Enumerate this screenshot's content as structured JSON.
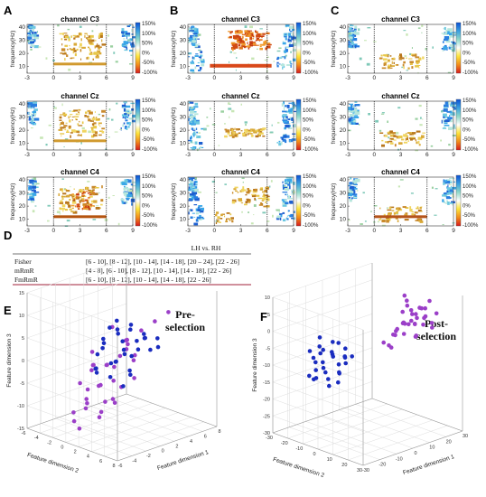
{
  "figure": {
    "letters": [
      "A",
      "B",
      "C",
      "D",
      "E",
      "F"
    ],
    "colorbar": {
      "labels": [
        "150%",
        "100%",
        "50%",
        "0%",
        "-50%",
        "-100%"
      ],
      "colors": [
        "#d7191c",
        "#f28c1a",
        "#fde33b",
        "#ffffff",
        "#8fd8c8",
        "#3aa0e0",
        "#0a4fd4"
      ]
    }
  },
  "chart_data": [
    {
      "type": "heatmap",
      "panel": "A",
      "charts": [
        {
          "title": "channel C3",
          "ylabel": "frequency(Hz)",
          "xticks": [
            "-3",
            "0",
            "3",
            "6",
            "9"
          ],
          "yticks": [
            "10",
            "20",
            "30",
            "40"
          ]
        },
        {
          "title": "channel Cz",
          "ylabel": "frequency(Hz)",
          "xticks": [
            "-3",
            "0",
            "3",
            "6",
            "9"
          ],
          "yticks": [
            "10",
            "20",
            "30",
            "40"
          ]
        },
        {
          "title": "channel C4",
          "ylabel": "frequency(Hz)",
          "xticks": [
            "-3",
            "0",
            "3",
            "6",
            "9"
          ],
          "yticks": [
            "10",
            "20",
            "30",
            "40"
          ]
        }
      ]
    },
    {
      "type": "heatmap",
      "panel": "B",
      "charts": [
        {
          "title": "channel C3",
          "ylabel": "frequency(Hz)",
          "xticks": [
            "-3",
            "0",
            "3",
            "6",
            "9"
          ],
          "yticks": [
            "10",
            "20",
            "30",
            "40"
          ]
        },
        {
          "title": "channel Cz",
          "ylabel": "frequency(Hz)",
          "xticks": [
            "-3",
            "0",
            "3",
            "6",
            "9"
          ],
          "yticks": [
            "10",
            "20",
            "30",
            "40"
          ]
        },
        {
          "title": "channel C4",
          "ylabel": "frequency(Hz)",
          "xticks": [
            "-3",
            "0",
            "3",
            "6",
            "9"
          ],
          "yticks": [
            "10",
            "20",
            "30",
            "40"
          ]
        }
      ]
    },
    {
      "type": "heatmap",
      "panel": "C",
      "charts": [
        {
          "title": "channel C3",
          "ylabel": "frequency(Hz)",
          "xticks": [
            "-3",
            "0",
            "3",
            "6",
            "9"
          ],
          "yticks": [
            "10",
            "20",
            "30",
            "40"
          ]
        },
        {
          "title": "channel Cz",
          "ylabel": "frequency(Hz)",
          "xticks": [
            "-3",
            "0",
            "3",
            "6",
            "9"
          ],
          "yticks": [
            "10",
            "20",
            "30",
            "40"
          ]
        },
        {
          "title": "channel C4",
          "ylabel": "frequency(Hz)",
          "xticks": [
            "-3",
            "0",
            "3",
            "6",
            "9"
          ],
          "yticks": [
            "10",
            "20",
            "30",
            "40"
          ]
        }
      ]
    },
    {
      "type": "table",
      "panel": "D",
      "header": "LH vs. RH",
      "rows": [
        {
          "method": "Fisher",
          "bands": "[6 - 10], [8 - 12], [10 - 14], [14 - 18], [20 – 24], [22 - 26]"
        },
        {
          "method": "mRmR",
          "bands": "[4 - 8], [6 - 10], [8 - 12], [10 - 14], [14 - 18], [22 - 26]"
        },
        {
          "method": "FmRmR",
          "bands": "[6 - 10], [8 - 12], [10 - 14], [14 - 18], [22 - 26]"
        }
      ]
    },
    {
      "type": "scatter",
      "panel": "E",
      "title_lines": [
        "Pre-",
        "selection"
      ],
      "xlabel": "Feature dimension 1",
      "ylabel": "Feature dimension 2",
      "zlabel": "Feature dimension 3",
      "xticks": [
        "-6",
        "-4",
        "-2",
        "0",
        "2",
        "4",
        "6",
        "8"
      ],
      "yticks": [
        "-6",
        "-4",
        "-2",
        "0",
        "2",
        "4",
        "6",
        "8"
      ],
      "zticks": [
        "-15",
        "-10",
        "-5",
        "0",
        "5",
        "10",
        "15"
      ],
      "xlim": [
        -6,
        8
      ],
      "ylim": [
        -6,
        8
      ],
      "zlim": [
        -15,
        15
      ],
      "series": [
        {
          "color": "#9b3fc8",
          "points": [
            [
              -4,
              5,
              12
            ],
            [
              -3,
              6,
              9
            ],
            [
              -5,
              3,
              6
            ],
            [
              -2,
              4,
              4
            ],
            [
              -4,
              2,
              2
            ],
            [
              -3,
              1,
              1
            ],
            [
              -5,
              4,
              -1
            ],
            [
              -2,
              3,
              -2
            ],
            [
              -4,
              0,
              -3
            ],
            [
              -1,
              5,
              3
            ],
            [
              -3,
              4,
              -5
            ],
            [
              -5,
              2,
              -7
            ],
            [
              -2,
              1,
              -4
            ],
            [
              -3,
              0,
              -8
            ],
            [
              -4,
              -1,
              -10
            ],
            [
              -1,
              2,
              0
            ],
            [
              0,
              3,
              5
            ],
            [
              -2,
              -1,
              -6
            ],
            [
              1,
              4,
              8
            ],
            [
              -5,
              1,
              -12
            ],
            [
              -3,
              3,
              2
            ],
            [
              0,
              4,
              -2
            ],
            [
              -4,
              3,
              -9
            ],
            [
              -1,
              0,
              -11
            ],
            [
              2,
              5,
              10
            ],
            [
              -2,
              5,
              6
            ],
            [
              -6,
              4,
              3
            ],
            [
              0,
              2,
              -5
            ],
            [
              -3,
              -2,
              -13
            ],
            [
              1,
              3,
              2
            ],
            [
              -1,
              4,
              7
            ],
            [
              -5,
              5,
              -4
            ],
            [
              -2,
              2,
              1
            ],
            [
              -4,
              1,
              -6
            ],
            [
              0,
              1,
              -9
            ],
            [
              3,
              6,
              12
            ]
          ]
        },
        {
          "color": "#1a2cbf",
          "points": [
            [
              3,
              -2,
              6
            ],
            [
              4,
              -1,
              4
            ],
            [
              2,
              -3,
              2
            ],
            [
              5,
              0,
              3
            ],
            [
              3,
              -4,
              0
            ],
            [
              4,
              -2,
              -1
            ],
            [
              6,
              -1,
              1
            ],
            [
              2,
              -1,
              -2
            ],
            [
              5,
              -3,
              -3
            ],
            [
              1,
              -2,
              1
            ],
            [
              3,
              0,
              -4
            ],
            [
              4,
              -4,
              -5
            ],
            [
              6,
              -2,
              -2
            ],
            [
              2,
              -4,
              -6
            ],
            [
              5,
              1,
              0
            ],
            [
              3,
              -3,
              -7
            ],
            [
              1,
              0,
              -1
            ],
            [
              4,
              0,
              2
            ],
            [
              6,
              -3,
              -4
            ],
            [
              2,
              -2,
              5
            ],
            [
              7,
              0,
              -1
            ],
            [
              3,
              -5,
              -3
            ],
            [
              5,
              -2,
              4
            ],
            [
              1,
              -3,
              -4
            ],
            [
              4,
              -1,
              -6
            ],
            [
              6,
              1,
              2
            ],
            [
              2,
              0,
              3
            ],
            [
              3,
              -1,
              -8
            ],
            [
              5,
              -4,
              1
            ],
            [
              0,
              -2,
              -3
            ],
            [
              4,
              -3,
              3
            ],
            [
              7,
              -2,
              0
            ]
          ]
        }
      ]
    },
    {
      "type": "scatter",
      "panel": "F",
      "title_lines": [
        "Post-",
        "selection"
      ],
      "xlabel": "Feature dimension 1",
      "ylabel": "Feature dimension 2",
      "zlabel": "Feature dimension 3",
      "xticks": [
        "-30",
        "-20",
        "-10",
        "0",
        "10",
        "20",
        "30"
      ],
      "yticks": [
        "-30",
        "-20",
        "-10",
        "0",
        "10",
        "20",
        "30"
      ],
      "zticks": [
        "-30",
        "-25",
        "-20",
        "-15",
        "-10",
        "-5",
        "0",
        "5",
        "10"
      ],
      "xlim": [
        -30,
        30
      ],
      "ylim": [
        -30,
        30
      ],
      "zlim": [
        -30,
        10
      ],
      "series": [
        {
          "color": "#9b3fc8",
          "points": [
            [
              8,
              10,
              0
            ],
            [
              12,
              14,
              2
            ],
            [
              16,
              12,
              4
            ],
            [
              10,
              6,
              -2
            ],
            [
              14,
              8,
              1
            ],
            [
              18,
              16,
              6
            ],
            [
              20,
              10,
              3
            ],
            [
              6,
              4,
              -4
            ],
            [
              22,
              14,
              5
            ],
            [
              15,
              18,
              7
            ],
            [
              11,
              12,
              -1
            ],
            [
              17,
              6,
              0
            ],
            [
              24,
              12,
              2
            ],
            [
              13,
              4,
              -3
            ],
            [
              19,
              8,
              4
            ],
            [
              9,
              14,
              3
            ],
            [
              21,
              18,
              8
            ],
            [
              16,
              2,
              -2
            ],
            [
              25,
              10,
              1
            ],
            [
              7,
              8,
              -5
            ],
            [
              23,
              6,
              -1
            ],
            [
              12,
              10,
              5
            ],
            [
              18,
              12,
              -3
            ],
            [
              14,
              16,
              2
            ],
            [
              20,
              4,
              6
            ],
            [
              10,
              18,
              4
            ],
            [
              26,
              14,
              0
            ],
            [
              15,
              8,
              9
            ],
            [
              28,
              12,
              -2
            ],
            [
              11,
              2,
              -6
            ],
            [
              17,
              14,
              3
            ],
            [
              22,
              8,
              -4
            ],
            [
              13,
              12,
              7
            ],
            [
              19,
              16,
              1
            ],
            [
              27,
              16,
              3
            ]
          ]
        },
        {
          "color": "#1a2cbf",
          "points": [
            [
              -18,
              -10,
              -8
            ],
            [
              -14,
              -8,
              -6
            ],
            [
              -20,
              -6,
              -10
            ],
            [
              -16,
              -12,
              -5
            ],
            [
              -12,
              -6,
              -9
            ],
            [
              -22,
              -10,
              -12
            ],
            [
              -10,
              -4,
              -7
            ],
            [
              -18,
              -4,
              -4
            ],
            [
              -14,
              -14,
              -11
            ],
            [
              -24,
              -8,
              -9
            ],
            [
              -8,
              -6,
              -5
            ],
            [
              -16,
              -2,
              -13
            ],
            [
              -20,
              -14,
              -7
            ],
            [
              -12,
              -10,
              -3
            ],
            [
              -26,
              -6,
              -6
            ],
            [
              -6,
              -8,
              -10
            ],
            [
              -18,
              -16,
              -14
            ],
            [
              -10,
              -12,
              -8
            ],
            [
              -22,
              -2,
              -11
            ],
            [
              -14,
              -4,
              -2
            ],
            [
              -8,
              -10,
              -13
            ],
            [
              -24,
              -12,
              -4
            ],
            [
              -16,
              -8,
              -15
            ],
            [
              -12,
              -2,
              -6
            ],
            [
              -20,
              -10,
              -3
            ],
            [
              -28,
              -8,
              -10
            ],
            [
              -4,
              -6,
              -8
            ],
            [
              -18,
              -12,
              -1
            ],
            [
              -10,
              -8,
              -12
            ],
            [
              -14,
              -16,
              -7
            ]
          ]
        }
      ]
    }
  ]
}
